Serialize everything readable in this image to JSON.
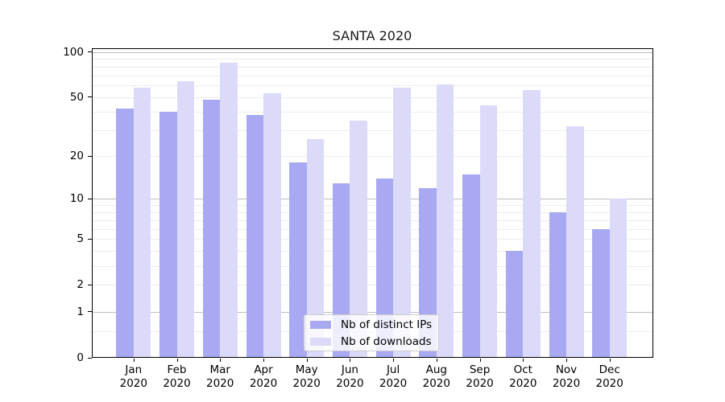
{
  "chart_data": {
    "type": "bar",
    "title": "SANTA 2020",
    "categories": [
      "Jan 2020",
      "Feb 2020",
      "Mar 2020",
      "Apr 2020",
      "May 2020",
      "Jun 2020",
      "Jul 2020",
      "Aug 2020",
      "Sep 2020",
      "Oct 2020",
      "Nov 2020",
      "Dec 2020"
    ],
    "series": [
      {
        "name": "Nb of distinct IPs",
        "color": "#a9a9f3",
        "values": [
          42,
          40,
          48,
          38,
          18,
          13,
          14,
          12,
          15,
          4,
          8,
          6
        ]
      },
      {
        "name": "Nb of downloads",
        "color": "#dbdbf9",
        "values": [
          58,
          64,
          85,
          53,
          26,
          35,
          58,
          61,
          44,
          56,
          32,
          10
        ]
      }
    ],
    "xlabel": "",
    "ylabel": "",
    "yscale": "log10(value+1)",
    "ylim": [
      0,
      105.8
    ],
    "yticks": [
      0,
      1,
      2,
      5,
      10,
      20,
      50,
      100
    ],
    "gridlines": {
      "major": [
        1,
        10,
        100
      ],
      "minor": [
        0.5,
        2,
        3,
        4,
        5,
        6,
        7,
        8,
        9,
        20,
        30,
        40,
        50,
        60,
        70,
        80,
        90
      ]
    },
    "grid": true,
    "legend_position": "lower center"
  }
}
